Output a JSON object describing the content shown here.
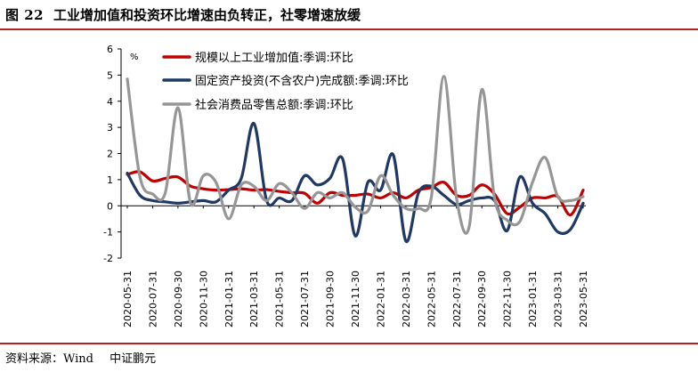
{
  "figure": {
    "number": "图 22",
    "title": "工业增加值和投资环比增速由负转正，社零增速放缓"
  },
  "source": {
    "label": "资料来源：Wind",
    "org": "中证鹏元"
  },
  "chart_data": {
    "type": "line",
    "unit_label": "%",
    "ylim": [
      -2,
      6
    ],
    "yticks": [
      -2,
      -1,
      0,
      1,
      2,
      3,
      4,
      5,
      6
    ],
    "x_tick_labels": [
      "2020-05-31",
      "2020-07-31",
      "2020-09-30",
      "2020-11-30",
      "2021-01-31",
      "2021-03-31",
      "2021-05-31",
      "2021-07-31",
      "2021-09-30",
      "2021-11-30",
      "2022-01-31",
      "2022-03-31",
      "2022-05-31",
      "2022-07-31",
      "2022-09-30",
      "2022-11-30",
      "2023-01-31",
      "2023-03-31",
      "2023-05-31"
    ],
    "legend_position": "top-center",
    "grid": false,
    "x": [
      "2020-05",
      "2020-06",
      "2020-07",
      "2020-08",
      "2020-09",
      "2020-10",
      "2020-11",
      "2020-12",
      "2021-01",
      "2021-02",
      "2021-03",
      "2021-04",
      "2021-05",
      "2021-06",
      "2021-07",
      "2021-08",
      "2021-09",
      "2021-10",
      "2021-11",
      "2021-12",
      "2022-01",
      "2022-02",
      "2022-03",
      "2022-04",
      "2022-05",
      "2022-06",
      "2022-07",
      "2022-08",
      "2022-09",
      "2022-10",
      "2022-11",
      "2022-12",
      "2023-01",
      "2023-02",
      "2023-03",
      "2023-04",
      "2023-05"
    ],
    "series": [
      {
        "name": "规模以上工业增加值:季调:环比",
        "color": "#c00000",
        "values": [
          1.2,
          1.3,
          0.95,
          1.05,
          1.1,
          0.75,
          0.65,
          0.6,
          0.62,
          0.65,
          0.6,
          0.62,
          0.55,
          0.5,
          0.48,
          0.1,
          0.5,
          0.4,
          0.4,
          0.45,
          0.3,
          0.5,
          0.3,
          0.6,
          0.7,
          0.9,
          0.4,
          0.4,
          0.8,
          0.45,
          -0.3,
          -0.05,
          0.3,
          0.3,
          0.35,
          -0.35,
          0.6
        ]
      },
      {
        "name": "固定资产投资(不含农户)完成额:季调:环比",
        "color": "#1f3864",
        "values": [
          1.25,
          0.4,
          0.2,
          0.15,
          0.1,
          0.15,
          0.2,
          0.15,
          0.6,
          1.05,
          3.15,
          0.2,
          0.3,
          0.2,
          1.15,
          0.8,
          1.05,
          1.8,
          -1.15,
          0.9,
          0.6,
          1.95,
          -1.35,
          0.5,
          0.75,
          0.4,
          0.05,
          0.2,
          0.3,
          0.2,
          -0.95,
          1.1,
          0.1,
          -0.3,
          -1.0,
          -0.9,
          0.1
        ]
      },
      {
        "name": "社会消费品零售总额:季调:环比",
        "color": "#969696",
        "values": [
          4.85,
          1.1,
          0.45,
          0.5,
          3.75,
          0.1,
          1.15,
          0.9,
          -0.5,
          0.8,
          0.75,
          0.2,
          0.85,
          0.5,
          -0.1,
          0.5,
          0.3,
          0.5,
          -0.05,
          -0.2,
          1.15,
          0.4,
          -0.1,
          -0.1,
          0.3,
          4.95,
          0.3,
          -0.8,
          4.45,
          0.3,
          -0.55,
          -0.6,
          0.9,
          1.85,
          0.35,
          0.2,
          0.35
        ]
      }
    ]
  }
}
